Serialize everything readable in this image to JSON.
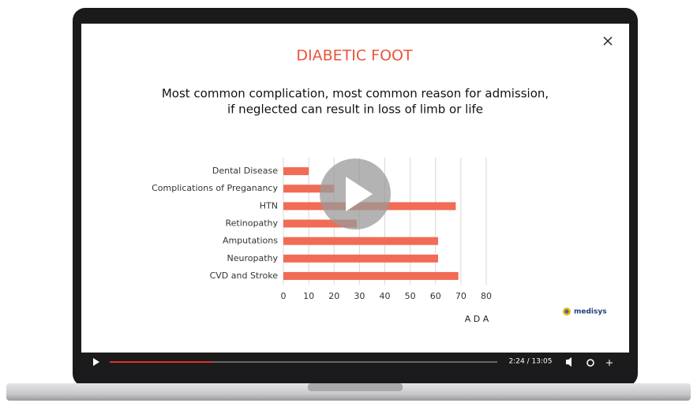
{
  "chart_data": {
    "type": "hbar",
    "title": "DIABETIC FOOT",
    "subtitle": [
      "Most common complication, most common reason for admission,",
      "if neglected can result in loss of limb or life"
    ],
    "categories": [
      "Dental Disease",
      "Complications of Preganancy",
      "HTN",
      "Retinopathy",
      "Amputations",
      "Neuropathy",
      "CVD and Stroke"
    ],
    "values": [
      10,
      20,
      68,
      29,
      61,
      61,
      69
    ],
    "color": "#f26b55",
    "xlim": [
      0,
      80
    ],
    "xticks": [
      0,
      10,
      20,
      30,
      40,
      50,
      60,
      70,
      80
    ],
    "xlabel": "A D A",
    "grid": true
  },
  "player": {
    "time": "2:24 / 13:05",
    "brand": "medisys"
  }
}
